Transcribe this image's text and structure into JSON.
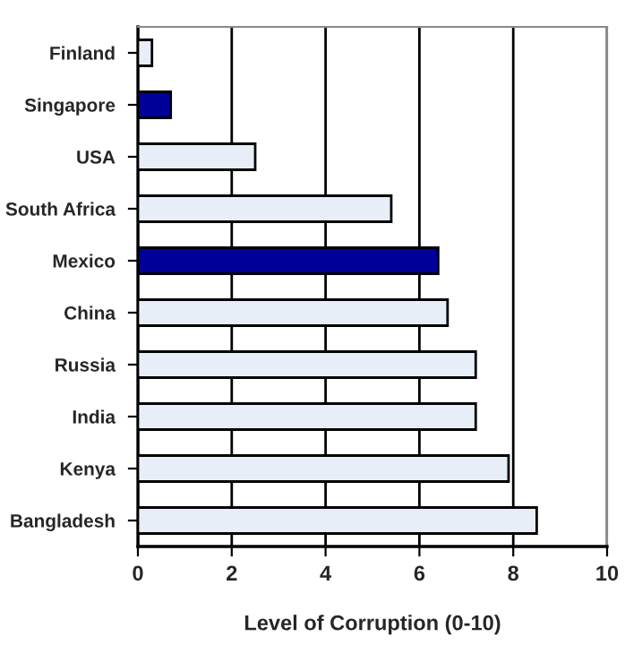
{
  "chart_data": {
    "type": "bar",
    "orientation": "horizontal",
    "xlabel": "Level of Corruption (0-10)",
    "categories": [
      "Finland",
      "Singapore",
      "USA",
      "South Africa",
      "Mexico",
      "China",
      "Russia",
      "India",
      "Kenya",
      "Bangladesh"
    ],
    "values": [
      0.3,
      0.7,
      2.5,
      5.4,
      6.4,
      6.6,
      7.2,
      7.2,
      7.9,
      8.5
    ],
    "colors": [
      "#e8eef7",
      "#000099",
      "#e8eef7",
      "#e8eef7",
      "#000099",
      "#e8eef7",
      "#e8eef7",
      "#e8eef7",
      "#e8eef7",
      "#e8eef7"
    ],
    "xlim": [
      0,
      10
    ],
    "xticks": [
      0,
      2,
      4,
      6,
      8,
      10
    ],
    "grid": "x",
    "legend": false
  }
}
